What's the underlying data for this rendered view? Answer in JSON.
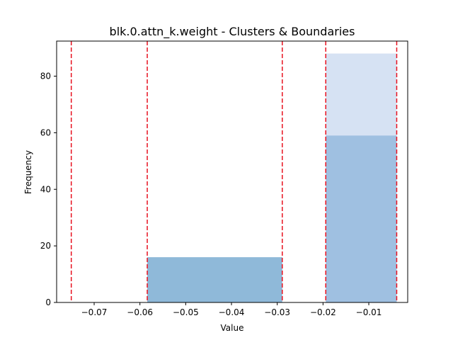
{
  "chart_data": {
    "type": "bar",
    "title": "blk.0.attn_k.weight - Clusters & Boundaries",
    "xlabel": "Value",
    "ylabel": "Frequency",
    "xlim": [
      -0.0782,
      -0.0015
    ],
    "ylim": [
      0,
      92.4
    ],
    "grid": false,
    "x_ticks": [
      -0.07,
      -0.06,
      -0.05,
      -0.04,
      -0.03,
      -0.02,
      -0.01
    ],
    "x_tick_labels": [
      "−0.07",
      "−0.06",
      "−0.05",
      "−0.04",
      "−0.03",
      "−0.02",
      "−0.01"
    ],
    "y_ticks": [
      0,
      20,
      40,
      60,
      80
    ],
    "y_tick_labels": [
      "0",
      "20",
      "40",
      "60",
      "80"
    ],
    "bars": [
      {
        "x0": -0.0584,
        "x1": -0.0289,
        "value": 16,
        "color": "#8fb9d9"
      },
      {
        "x0": -0.0194,
        "x1": -0.0039,
        "value": 88,
        "color": "#d6e2f3"
      },
      {
        "x0": -0.0194,
        "x1": -0.0039,
        "value": 59,
        "color": "#9fc0e1"
      }
    ],
    "boundaries": [
      -0.075,
      -0.0584,
      -0.0289,
      -0.0194,
      -0.0039
    ],
    "boundary_color": "#e8111f"
  }
}
